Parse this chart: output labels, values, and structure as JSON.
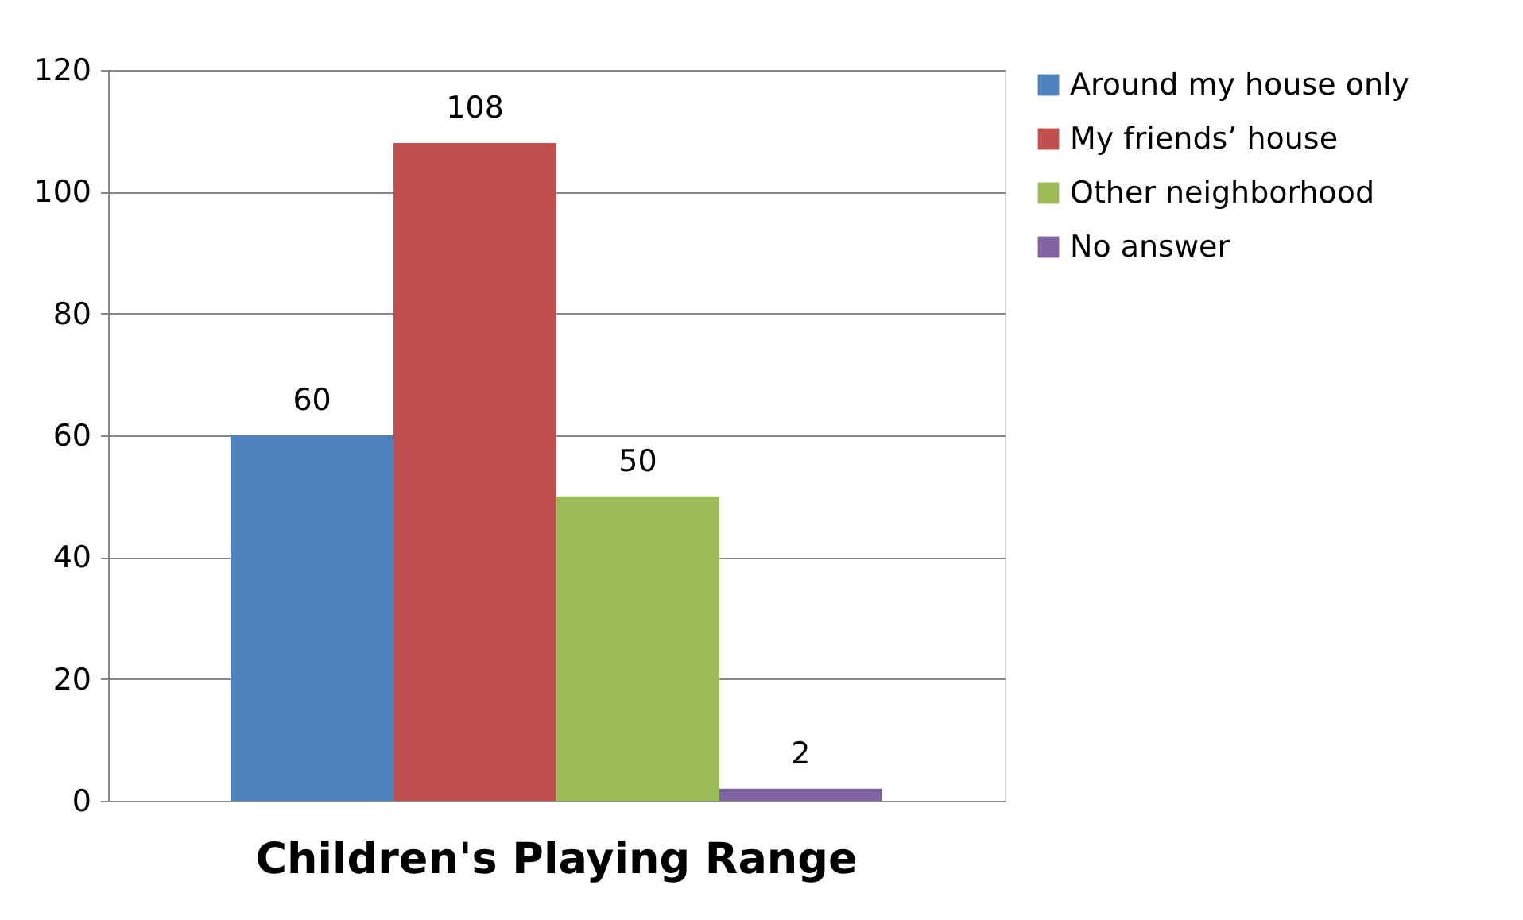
{
  "chart_data": {
    "type": "bar",
    "categories": [
      "Children's Playing Range"
    ],
    "series": [
      {
        "name": "Around my house only",
        "color": "#4f81bd",
        "values": [
          60
        ]
      },
      {
        "name": "My friends’ house",
        "color": "#c0504d",
        "values": [
          108
        ]
      },
      {
        "name": "Other neighborhood",
        "color": "#9bbb59",
        "values": [
          50
        ]
      },
      {
        "name": "No answer",
        "color": "#8064a2",
        "values": [
          2
        ]
      }
    ],
    "ylim": [
      0,
      120
    ],
    "yticks": [
      0,
      20,
      40,
      60,
      80,
      100,
      120
    ],
    "grid": "y",
    "legend": "right",
    "data_labels": true
  }
}
